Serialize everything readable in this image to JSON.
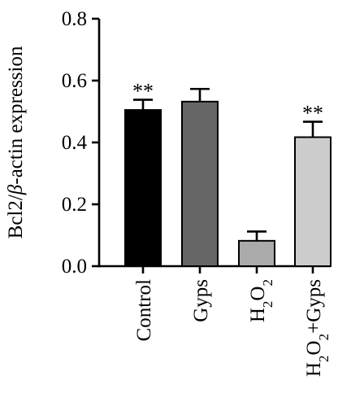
{
  "chart_data": {
    "type": "bar",
    "title": "",
    "xlabel": "",
    "ylabel": {
      "before": "Bcl2/",
      "italic": "β",
      "after": "-actin expression"
    },
    "ylim": [
      0,
      0.8
    ],
    "yticks": [
      "0.0",
      "0.2",
      "0.4",
      "0.6",
      "0.8"
    ],
    "grid": false,
    "categories": [
      {
        "parts": [
          {
            "t": "Control"
          }
        ]
      },
      {
        "parts": [
          {
            "t": "Gyps"
          }
        ]
      },
      {
        "parts": [
          {
            "t": "H"
          },
          {
            "t": "2",
            "sub": true
          },
          {
            "t": "O"
          },
          {
            "t": "2",
            "sub": true
          }
        ]
      },
      {
        "parts": [
          {
            "t": "H"
          },
          {
            "t": "2",
            "sub": true
          },
          {
            "t": "O"
          },
          {
            "t": "2",
            "sub": true
          },
          {
            "t": "+Gyps"
          }
        ]
      }
    ],
    "values": [
      0.505,
      0.532,
      0.082,
      0.417
    ],
    "errors": [
      0.033,
      0.041,
      0.03,
      0.05
    ],
    "annotations": [
      "**",
      "",
      "",
      "**"
    ],
    "colors": [
      "#000000",
      "#666666",
      "#aaaaaa",
      "#cccccc"
    ]
  }
}
